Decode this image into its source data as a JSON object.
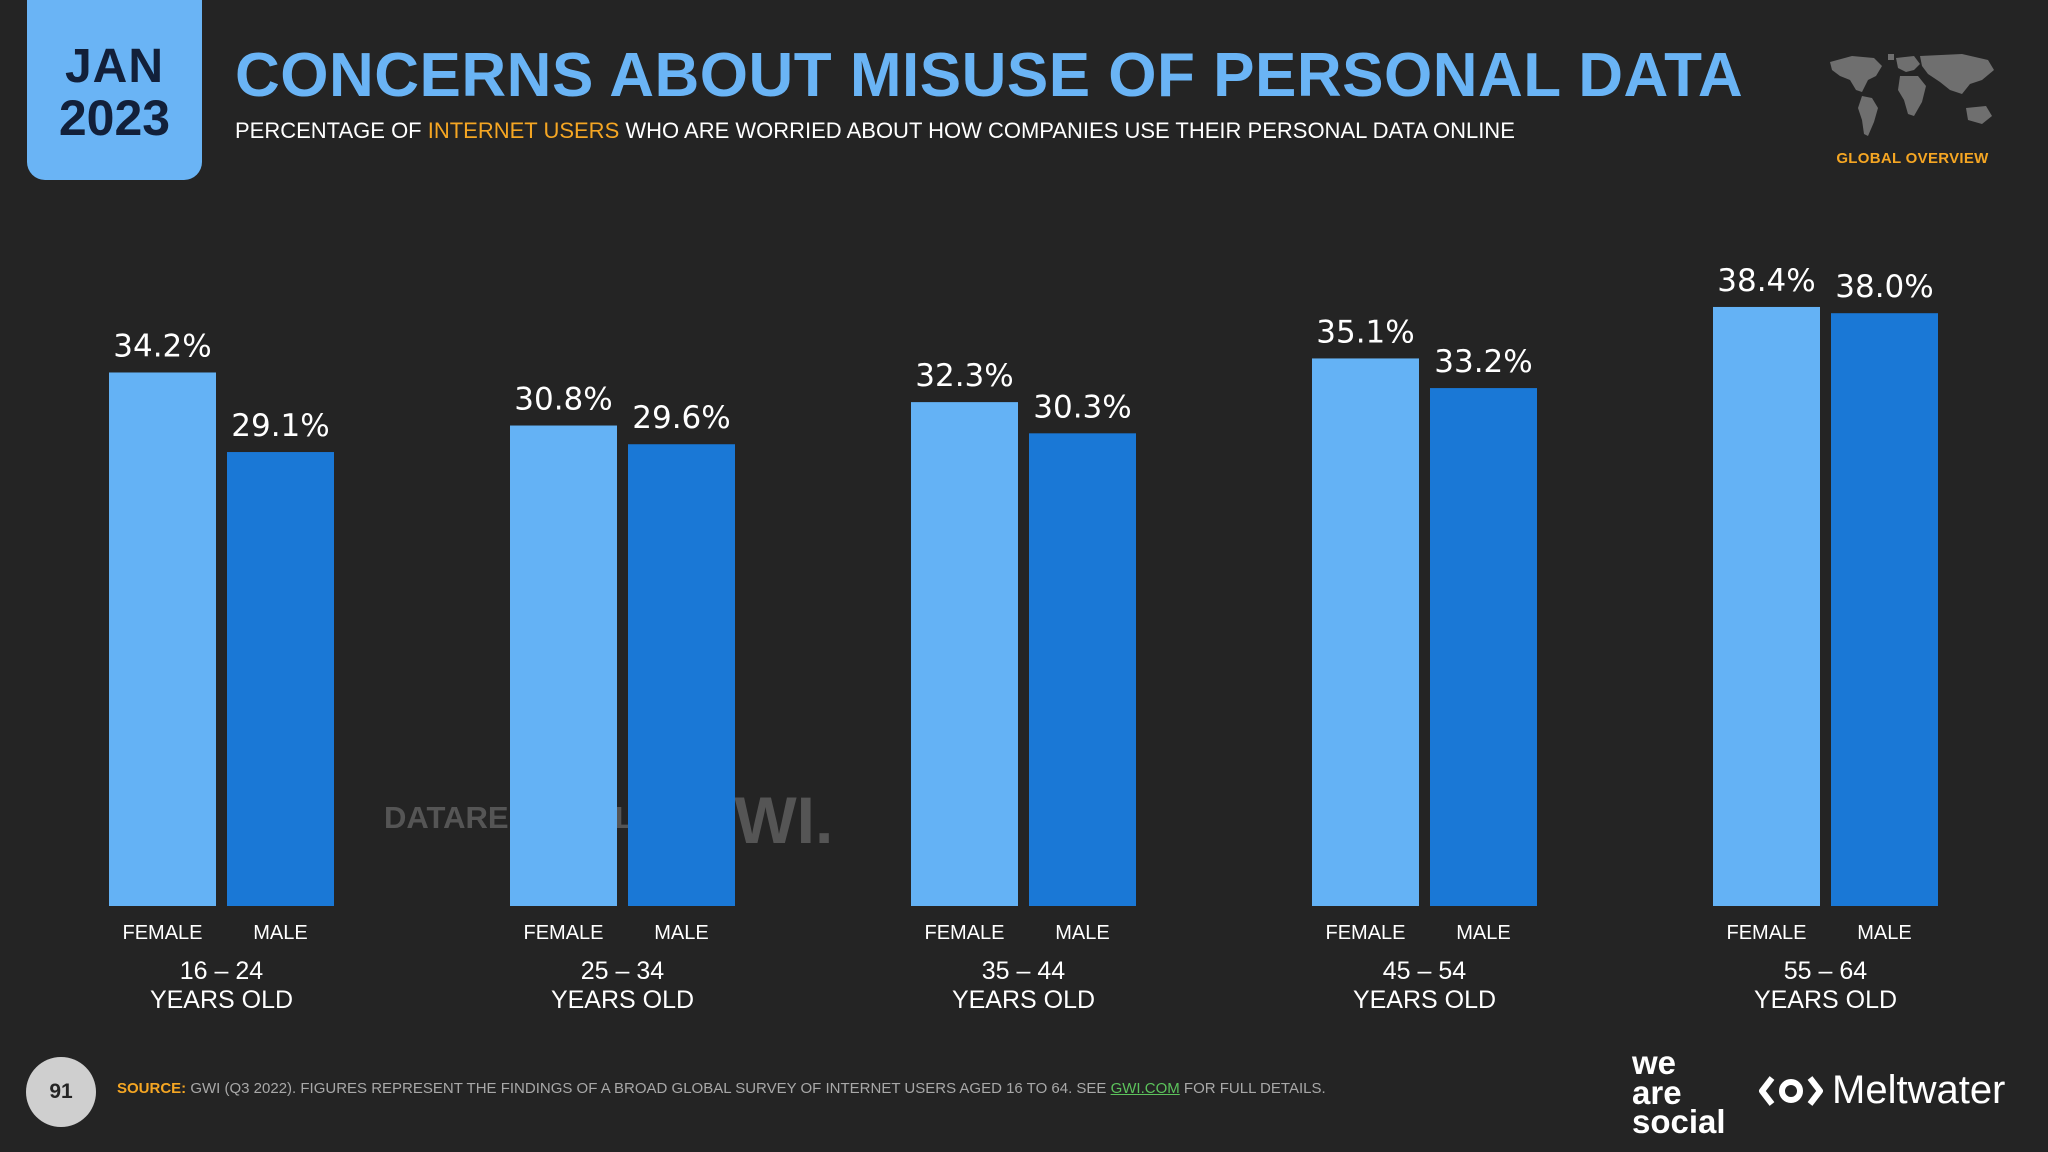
{
  "header": {
    "month": "JAN",
    "year": "2023",
    "title": "CONCERNS ABOUT MISUSE OF PERSONAL DATA",
    "subtitle_pre": "PERCENTAGE OF ",
    "subtitle_highlight": "INTERNET USERS",
    "subtitle_post": " WHO ARE WORRIED ABOUT HOW COMPANIES USE THEIR PERSONAL DATA ONLINE",
    "section_label": "GLOBAL OVERVIEW"
  },
  "watermarks": {
    "datareportal": "DATAREPORTAL",
    "gwi": "GWI."
  },
  "footer": {
    "page_number": "91",
    "source_label": "SOURCE:",
    "source_text": "GWI (Q3 2022). FIGURES REPRESENT THE FINDINGS OF A BROAD GLOBAL SURVEY OF INTERNET USERS AGED 16 TO 64. SEE ",
    "source_link": "GWI.COM",
    "source_after": " FOR FULL DETAILS.",
    "brand_1_line1": "we",
    "brand_1_line2": "are",
    "brand_1_line3": "social",
    "brand_2": "Meltwater"
  },
  "colors": {
    "female": "#64b2f5",
    "male": "#1a78d6",
    "accent": "#f5a623",
    "title": "#6ab4f5",
    "background": "#242424"
  },
  "chart_data": {
    "type": "bar",
    "categories": [
      "16 – 24",
      "25 – 34",
      "35 – 44",
      "45 – 54",
      "55 – 64"
    ],
    "category_sublabel": "YEARS OLD",
    "series": [
      {
        "name": "FEMALE",
        "values": [
          34.2,
          30.8,
          32.3,
          35.1,
          38.4
        ]
      },
      {
        "name": "MALE",
        "values": [
          29.1,
          29.6,
          30.3,
          33.2,
          38.0
        ]
      }
    ],
    "data_labels": [
      [
        "34.2%",
        "30.8%",
        "32.3%",
        "35.1%",
        "38.4%"
      ],
      [
        "29.1%",
        "29.6%",
        "30.3%",
        "33.2%",
        "38.0%"
      ]
    ],
    "ylim": [
      0,
      40
    ],
    "grid": false,
    "legend": "none"
  }
}
